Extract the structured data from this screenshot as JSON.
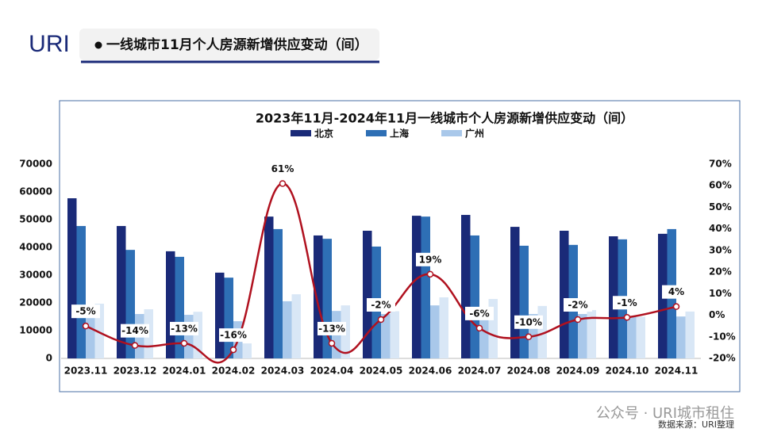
{
  "header": {
    "logo": "URI",
    "title": "一线城市11月个人房源新增供应变动（间）"
  },
  "chart_data": {
    "type": "bar-line",
    "title": "2023年11月-2024年11月一线城市个人房源新增供应变动（间）",
    "categories": [
      "2023.11",
      "2023.12",
      "2024.01",
      "2024.02",
      "2024.03",
      "2024.04",
      "2024.05",
      "2024.06",
      "2024.07",
      "2024.08",
      "2024.09",
      "2024.10",
      "2024.11"
    ],
    "series": [
      {
        "name": "北京",
        "color": "#1a2a78",
        "values": [
          57700,
          47700,
          38600,
          30900,
          51100,
          44300,
          46000,
          51400,
          51700,
          47400,
          46000,
          44000,
          44900
        ]
      },
      {
        "name": "上海",
        "color": "#2e6fb5",
        "values": [
          47700,
          39100,
          36600,
          29100,
          46600,
          43100,
          40300,
          51100,
          44300,
          40600,
          40900,
          42900,
          46600
        ]
      },
      {
        "name": "广州",
        "color": "#a9c8ea",
        "values": [
          15000,
          16000,
          15700,
          13400,
          20600,
          17100,
          16000,
          19100,
          18000,
          16000,
          16000,
          15000,
          15100
        ]
      },
      {
        "color": "#d9e7f6",
        "values": [
          19700,
          17700,
          16800,
          5400,
          23100,
          19100,
          17000,
          22000,
          21400,
          18900,
          17400,
          15000,
          16900
        ]
      },
      {
        "type": "line",
        "axis": "y2",
        "color": "#b0111f",
        "values": [
          -5,
          -14,
          -13,
          -16,
          61,
          -13,
          -2,
          19,
          -6,
          -10,
          -2,
          -1,
          4
        ],
        "value_labels": [
          "-5%",
          "-14%",
          "-13%",
          "-16%",
          "61%",
          "-13%",
          "-2%",
          "19%",
          "-6%",
          "-10%",
          "-2%",
          "-1%",
          "4%"
        ]
      }
    ],
    "ylim": [
      0,
      70000
    ],
    "yticks": [
      0,
      10000,
      20000,
      30000,
      40000,
      50000,
      60000,
      70000
    ],
    "y2lim": [
      -20,
      70
    ],
    "y2ticks": [
      {
        "value": -20,
        "label": "-20%"
      },
      {
        "value": -10,
        "label": "-10%"
      },
      {
        "value": 0,
        "label": "0%"
      },
      {
        "value": 10,
        "label": "10%"
      },
      {
        "value": 20,
        "label": "20%"
      },
      {
        "value": 30,
        "label": "30%"
      },
      {
        "value": 40,
        "label": "40%"
      },
      {
        "value": 50,
        "label": "50%"
      },
      {
        "value": 60,
        "label": "60%"
      },
      {
        "value": 70,
        "label": "70%"
      }
    ],
    "legend": "top"
  },
  "footer": {
    "account": "公众号 · URI城市租住",
    "source": "数据来源：URI整理"
  }
}
